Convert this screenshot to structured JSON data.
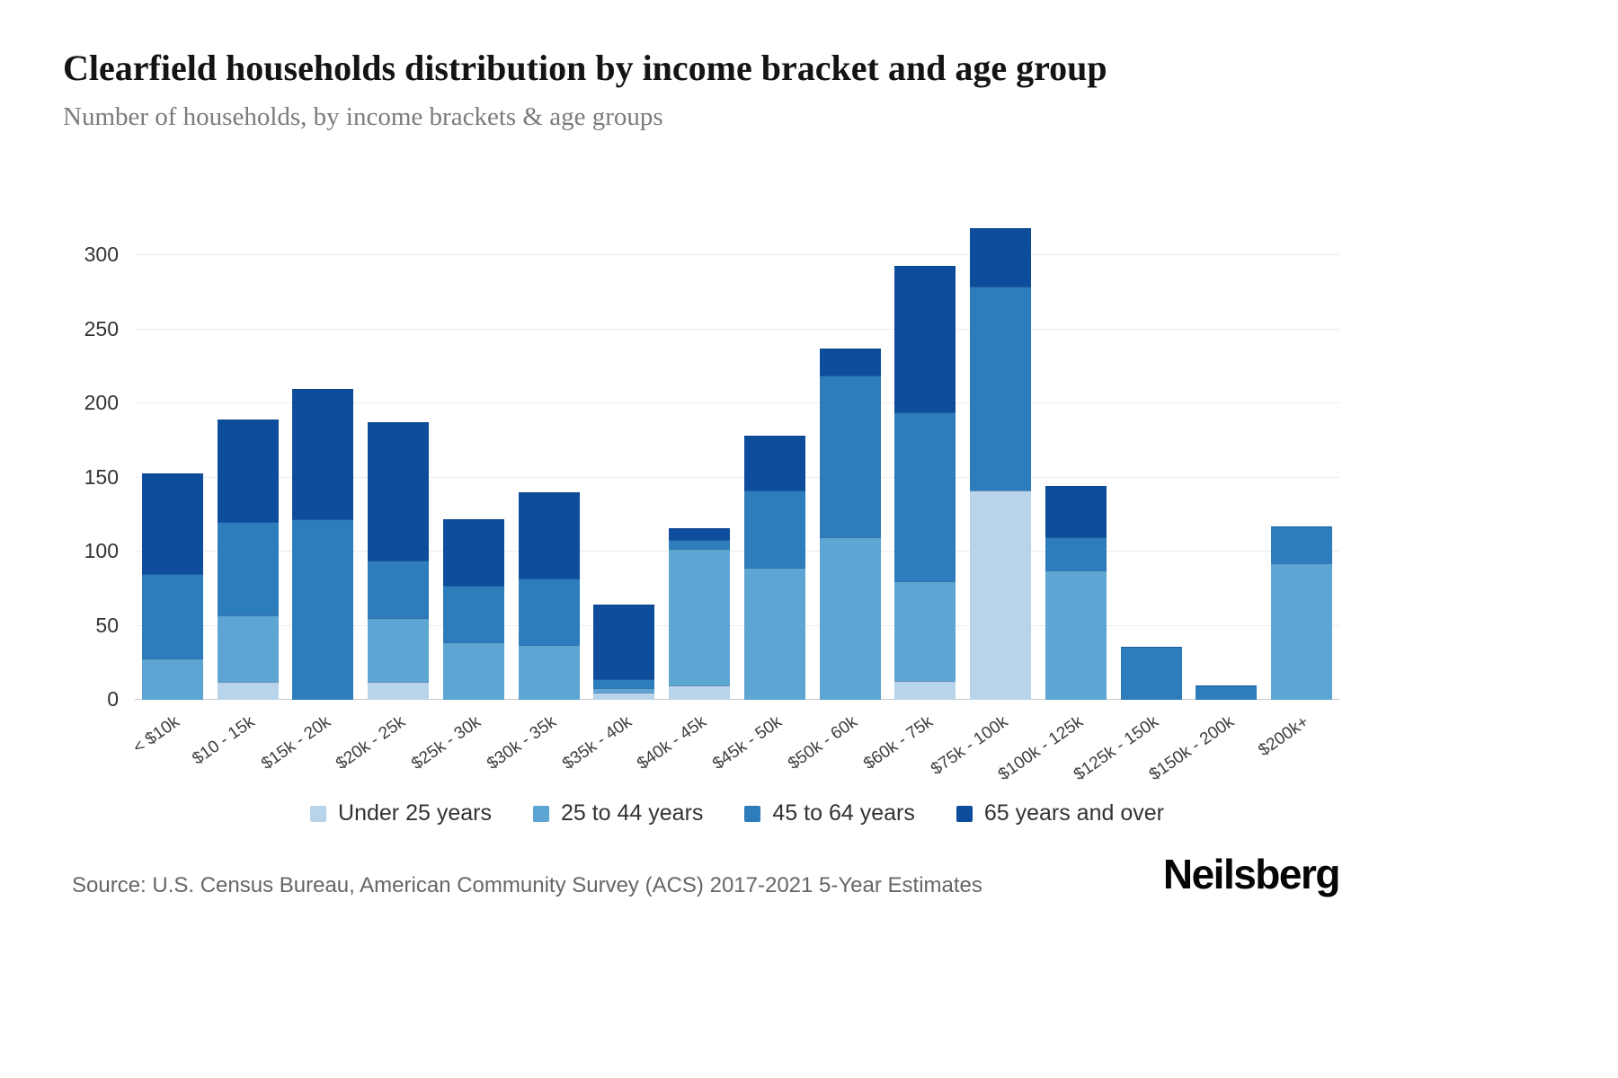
{
  "page": {
    "title": "Clearfield households distribution by income bracket and age group",
    "subtitle": "Number of households, by income brackets & age groups",
    "source": "Source: U.S. Census Bureau, American Community Survey (ACS) 2017-2021 5-Year Estimates",
    "brand": "Neilsberg"
  },
  "chart_data": {
    "type": "bar",
    "stacked": true,
    "title": "Clearfield households distribution by income bracket and age group",
    "subtitle": "Number of households, by income brackets & age groups",
    "xlabel": "",
    "ylabel": "",
    "ylim": [
      0,
      300
    ],
    "yticks": [
      0,
      50,
      100,
      150,
      200,
      250,
      300
    ],
    "grid": true,
    "legend_position": "bottom",
    "categories": [
      "< $10k",
      "$10 - 15k",
      "$15k - 20k",
      "$20k - 25k",
      "$25k - 30k",
      "$30k - 35k",
      "$35k - 40k",
      "$40k - 45k",
      "$45k - 50k",
      "$50k - 60k",
      "$60k - 75k",
      "$75k - 100k",
      "$100k - 125k",
      "$125k - 150k",
      "$150k - 200k",
      "$200k+"
    ],
    "series": [
      {
        "name": "Under 25 years",
        "color": "#b7d4ea",
        "values": [
          0,
          12,
          0,
          12,
          0,
          0,
          5,
          10,
          0,
          0,
          13,
          141,
          0,
          0,
          0,
          0
        ]
      },
      {
        "name": "25 to 44 years",
        "color": "#5da5d2",
        "values": [
          28,
          45,
          0,
          43,
          39,
          37,
          3,
          92,
          89,
          110,
          67,
          0,
          87,
          0,
          0,
          92
        ]
      },
      {
        "name": "45 to 64 years",
        "color": "#2d7cbb",
        "values": [
          57,
          63,
          122,
          39,
          38,
          45,
          6,
          6,
          52,
          109,
          114,
          138,
          23,
          36,
          10,
          25
        ]
      },
      {
        "name": "65 years and over",
        "color": "#0d4d9c",
        "values": [
          68,
          69,
          88,
          93,
          45,
          58,
          50,
          8,
          37,
          18,
          99,
          39,
          34,
          0,
          0,
          0
        ]
      }
    ]
  }
}
